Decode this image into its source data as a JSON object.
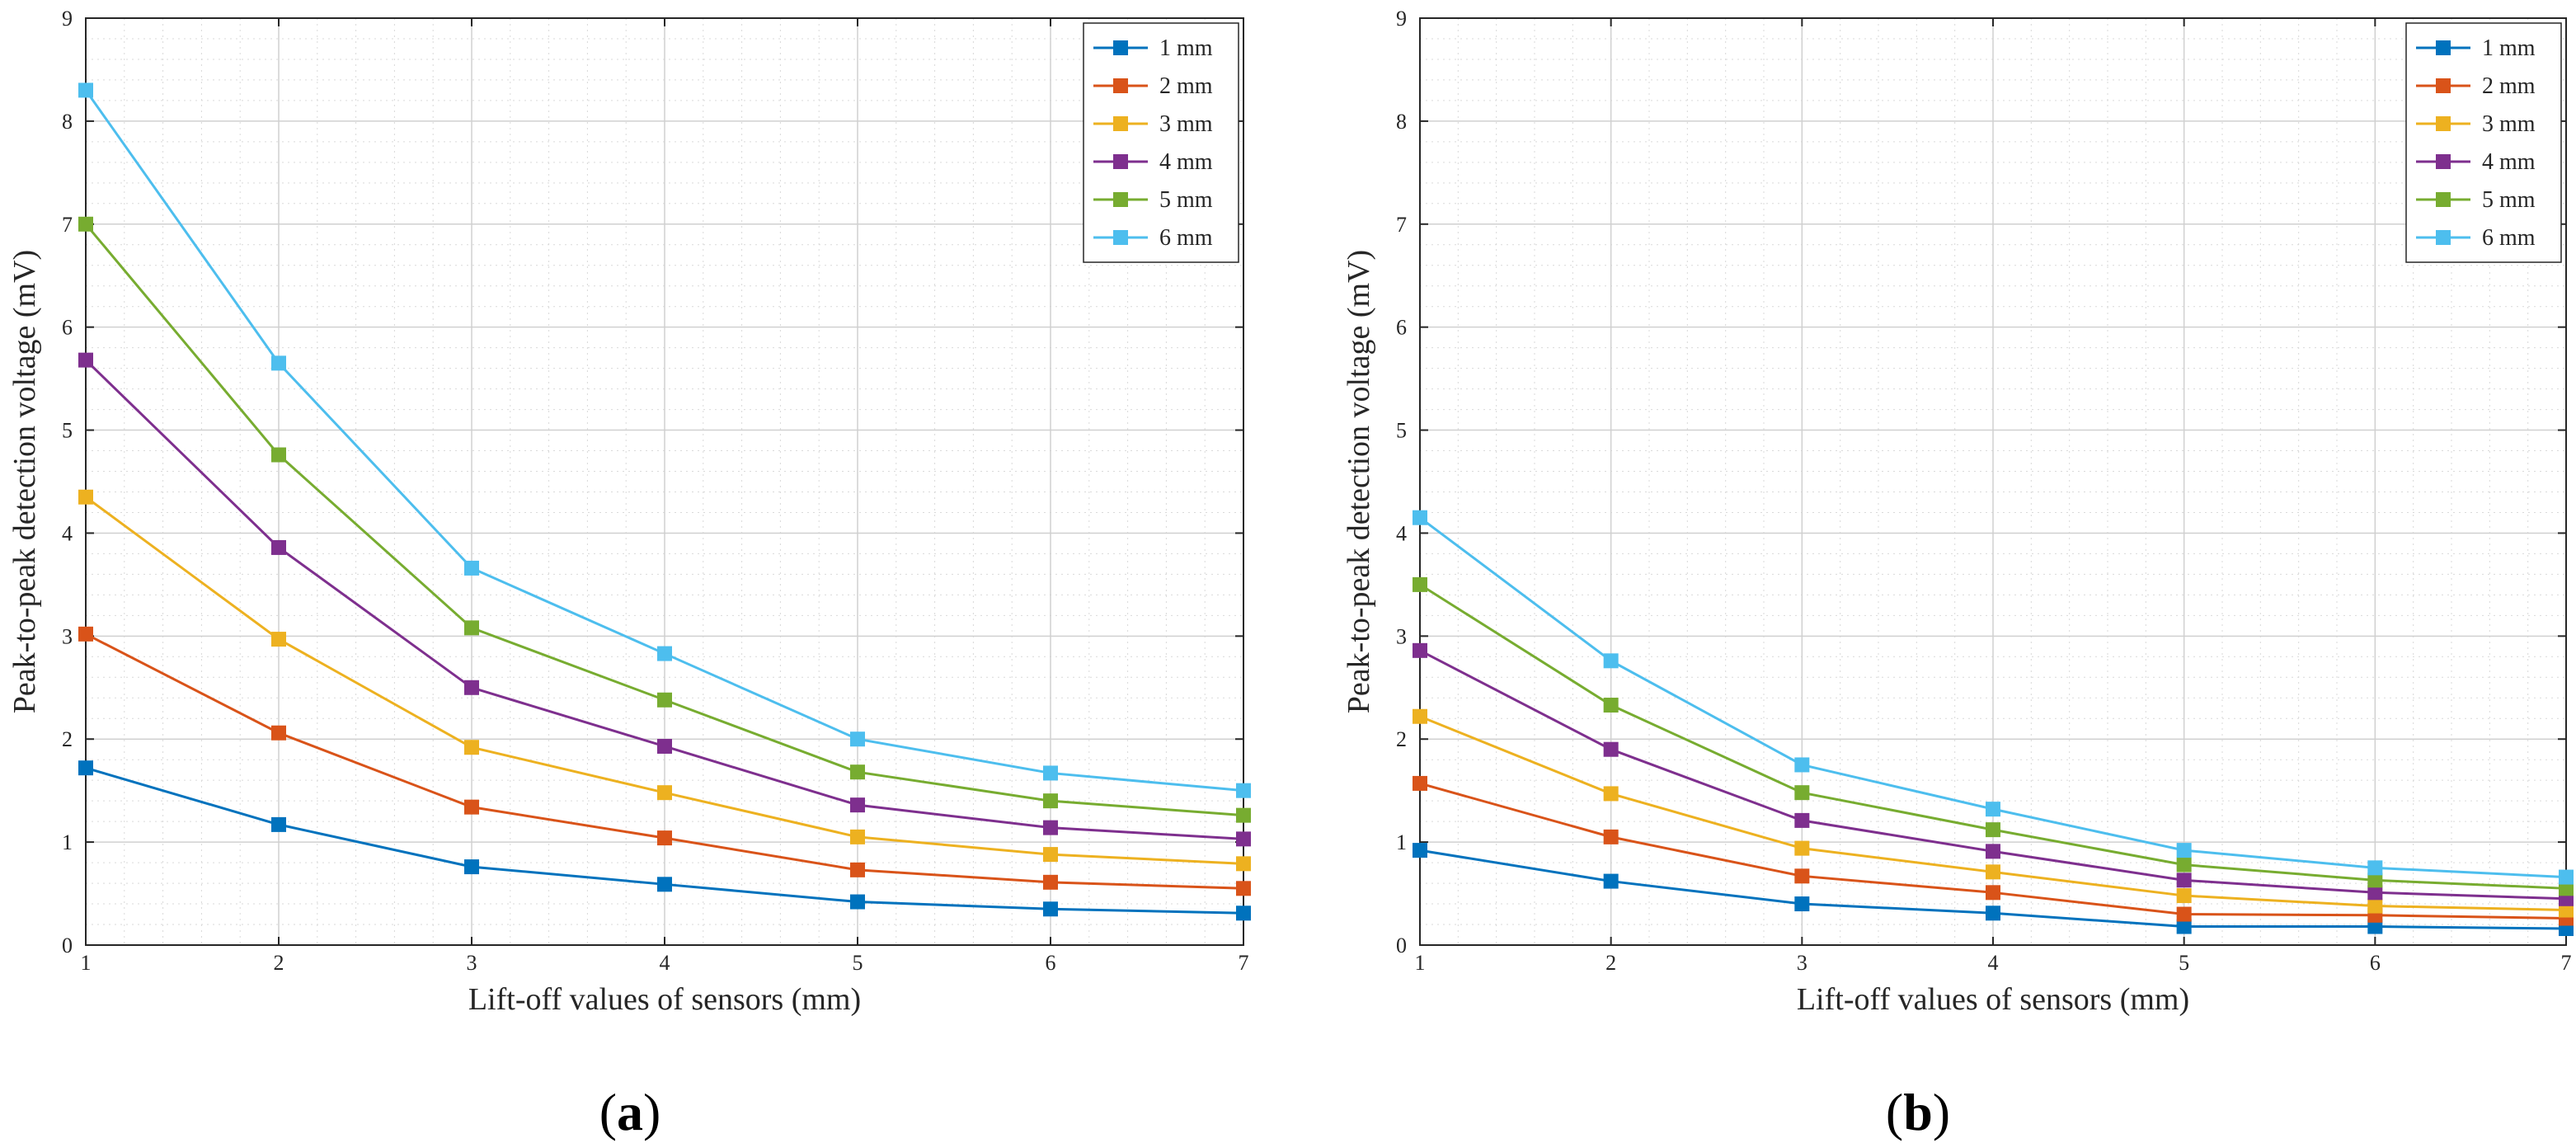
{
  "chart_data": [
    {
      "type": "line",
      "panel_label": "a",
      "xlabel": "Lift-off values of sensors (mm)",
      "ylabel": "Peak-to-peak detection voltage (mV)",
      "xlim": [
        1,
        7
      ],
      "ylim": [
        0,
        9
      ],
      "xticks": [
        1,
        2,
        3,
        4,
        5,
        6,
        7
      ],
      "yticks": [
        0,
        1,
        2,
        3,
        4,
        5,
        6,
        7,
        8,
        9
      ],
      "grid": true,
      "legend_position": "top-right",
      "x": [
        1,
        2,
        3,
        4,
        5,
        6,
        7
      ],
      "series": [
        {
          "name": "1 mm",
          "color": "#0072BD",
          "values": [
            1.72,
            1.17,
            0.76,
            0.59,
            0.42,
            0.35,
            0.31
          ]
        },
        {
          "name": "2 mm",
          "color": "#D95319",
          "values": [
            3.02,
            2.06,
            1.34,
            1.04,
            0.73,
            0.61,
            0.55
          ]
        },
        {
          "name": "3 mm",
          "color": "#EDB120",
          "values": [
            4.35,
            2.97,
            1.92,
            1.48,
            1.05,
            0.88,
            0.79
          ]
        },
        {
          "name": "4 mm",
          "color": "#7E2F8E",
          "values": [
            5.68,
            3.86,
            2.5,
            1.93,
            1.36,
            1.14,
            1.03
          ]
        },
        {
          "name": "5 mm",
          "color": "#77AC30",
          "values": [
            7.0,
            4.76,
            3.08,
            2.38,
            1.68,
            1.4,
            1.26
          ]
        },
        {
          "name": "6 mm",
          "color": "#4DBEEE",
          "values": [
            8.3,
            5.65,
            3.66,
            2.83,
            2.0,
            1.67,
            1.5
          ]
        }
      ]
    },
    {
      "type": "line",
      "panel_label": "b",
      "xlabel": "Lift-off values of sensors (mm)",
      "ylabel": "Peak-to-peak detection voltage (mV)",
      "xlim": [
        1,
        7
      ],
      "ylim": [
        0,
        9
      ],
      "xticks": [
        1,
        2,
        3,
        4,
        5,
        6,
        7
      ],
      "yticks": [
        0,
        1,
        2,
        3,
        4,
        5,
        6,
        7,
        8,
        9
      ],
      "grid": true,
      "legend_position": "top-right",
      "x": [
        1,
        2,
        3,
        4,
        5,
        6,
        7
      ],
      "series": [
        {
          "name": "1 mm",
          "color": "#0072BD",
          "values": [
            0.92,
            0.62,
            0.4,
            0.31,
            0.18,
            0.18,
            0.16
          ]
        },
        {
          "name": "2 mm",
          "color": "#D95319",
          "values": [
            1.57,
            1.05,
            0.67,
            0.51,
            0.3,
            0.29,
            0.26
          ]
        },
        {
          "name": "3 mm",
          "color": "#EDB120",
          "values": [
            2.22,
            1.47,
            0.94,
            0.71,
            0.48,
            0.38,
            0.34
          ]
        },
        {
          "name": "4 mm",
          "color": "#7E2F8E",
          "values": [
            2.86,
            1.9,
            1.21,
            0.91,
            0.63,
            0.51,
            0.45
          ]
        },
        {
          "name": "5 mm",
          "color": "#77AC30",
          "values": [
            3.5,
            2.33,
            1.48,
            1.12,
            0.78,
            0.63,
            0.55
          ]
        },
        {
          "name": "6 mm",
          "color": "#4DBEEE",
          "values": [
            4.15,
            2.76,
            1.75,
            1.32,
            0.92,
            0.75,
            0.66
          ]
        }
      ]
    }
  ]
}
